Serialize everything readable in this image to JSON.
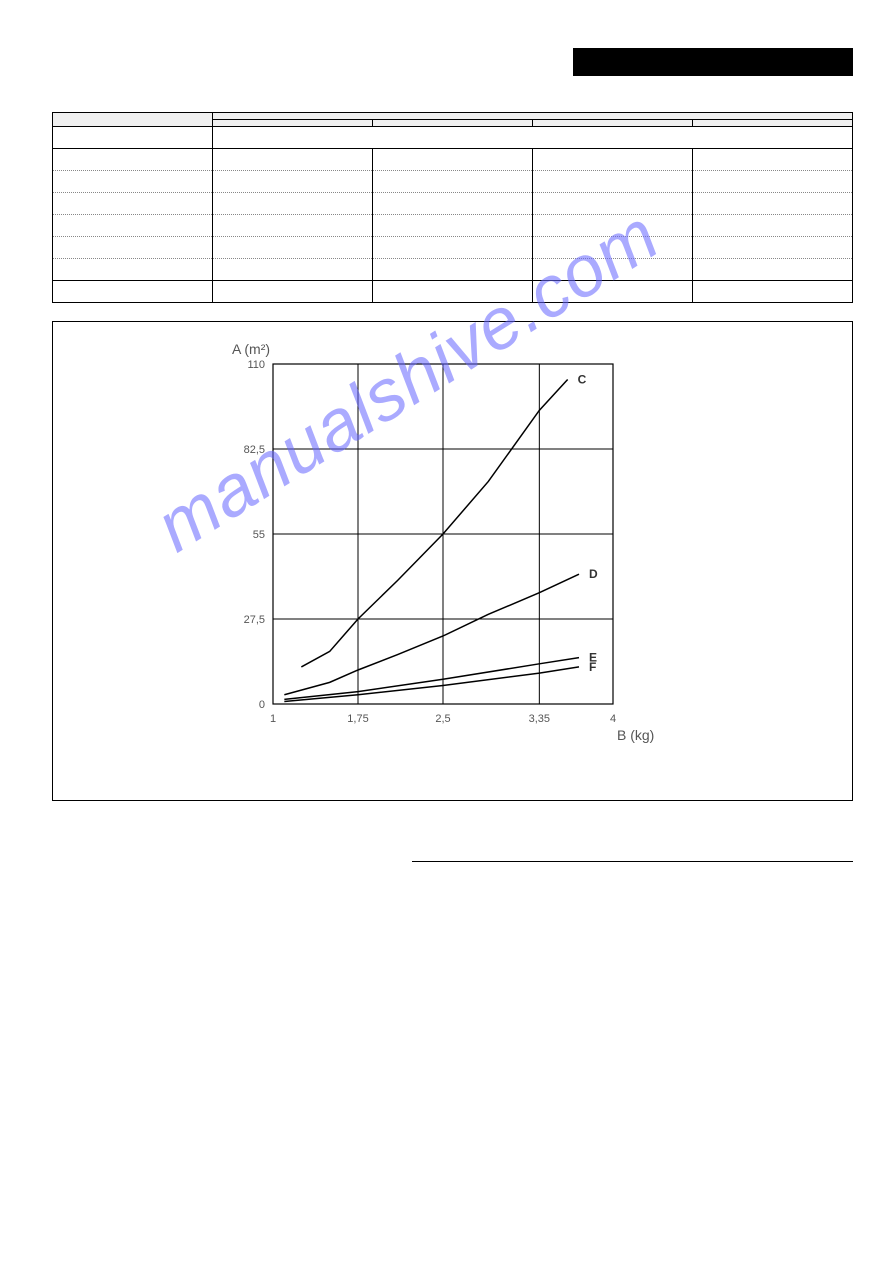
{
  "header": {
    "bar_text": ""
  },
  "table": {
    "col1_header": "",
    "group_header": "",
    "subheaders": [
      "",
      "",
      "",
      ""
    ],
    "rows": [
      {
        "label": "",
        "merged": ""
      },
      {
        "label": "",
        "cells": [
          "",
          "",
          "",
          ""
        ]
      },
      {
        "label": "",
        "cells": [
          "",
          "",
          "",
          ""
        ]
      },
      {
        "label": "",
        "cells": [
          "",
          "",
          "",
          ""
        ]
      },
      {
        "label": "",
        "cells": [
          "",
          "",
          "",
          ""
        ]
      },
      {
        "label": "",
        "cells": [
          "",
          "",
          "",
          ""
        ]
      },
      {
        "label": "",
        "cells": [
          "",
          "",
          "",
          ""
        ]
      },
      {
        "label": "",
        "cells": [
          "",
          "",
          "",
          ""
        ]
      }
    ]
  },
  "chart": {
    "type": "line",
    "y_axis": {
      "title": "A (m²)",
      "min": 0,
      "max": 110,
      "ticks": [
        0,
        27.5,
        55,
        82.5,
        110
      ]
    },
    "x_axis": {
      "title": "B (kg)",
      "min": 1,
      "max": 4,
      "ticks": [
        1,
        1.75,
        2.5,
        3.35,
        4
      ]
    },
    "grid_color": "#000000",
    "background_color": "#ffffff",
    "line_color": "#000000",
    "line_width": 1.5,
    "axis_fontsize": 14,
    "tick_fontsize": 11,
    "series": [
      {
        "label": "C",
        "points": [
          [
            1.25,
            12
          ],
          [
            1.5,
            17
          ],
          [
            1.75,
            27.5
          ],
          [
            2.1,
            40
          ],
          [
            2.5,
            55
          ],
          [
            2.9,
            72
          ],
          [
            3.35,
            95
          ],
          [
            3.6,
            105
          ]
        ]
      },
      {
        "label": "D",
        "points": [
          [
            1.1,
            3
          ],
          [
            1.5,
            7
          ],
          [
            1.75,
            11
          ],
          [
            2.1,
            16
          ],
          [
            2.5,
            22
          ],
          [
            2.9,
            29
          ],
          [
            3.35,
            36
          ],
          [
            3.7,
            42
          ]
        ]
      },
      {
        "label": "E",
        "points": [
          [
            1.1,
            1.5
          ],
          [
            1.75,
            4
          ],
          [
            2.5,
            8
          ],
          [
            3.35,
            13
          ],
          [
            3.7,
            15
          ]
        ]
      },
      {
        "label": "F",
        "points": [
          [
            1.1,
            0.8
          ],
          [
            1.75,
            3
          ],
          [
            2.5,
            6
          ],
          [
            3.35,
            10
          ],
          [
            3.7,
            12
          ]
        ]
      }
    ]
  },
  "watermark": {
    "text": "manualshive.com",
    "color": "rgba(100,100,255,0.55)"
  }
}
